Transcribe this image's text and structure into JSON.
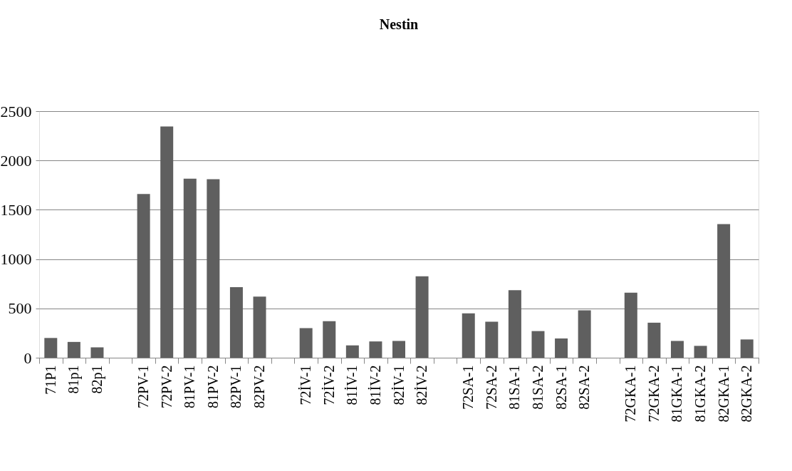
{
  "chart_data": {
    "type": "bar",
    "title": "Nestin",
    "categories": [
      "71P1",
      "81p1",
      "82p1",
      null,
      "72PV-1",
      "72PV-2",
      "81PV-1",
      "81PV-2",
      "82PV-1",
      "82PV-2",
      null,
      "72İV-1",
      "72İV-2",
      "81İV-1",
      "81İV-2",
      "82İV-1",
      "82İV-2",
      null,
      "72SA-1",
      "72SA-2",
      "81SA-1",
      "81SA-2",
      "82SA-1",
      "82SA-2",
      null,
      "72GKA-1",
      "72GKA-2",
      "81GKA-1",
      "81GKA-2",
      "82GKA-1",
      "82GKA-2"
    ],
    "values": [
      200,
      160,
      105,
      null,
      1660,
      2345,
      1815,
      1810,
      715,
      620,
      null,
      300,
      370,
      125,
      165,
      170,
      825,
      null,
      450,
      365,
      685,
      270,
      195,
      480,
      null,
      660,
      355,
      170,
      120,
      1355,
      185
    ],
    "color": "#5f5f5f",
    "ylim": [
      0,
      2500
    ],
    "yticks": [
      0,
      500,
      1000,
      1500,
      2000,
      2500
    ],
    "grid": "y"
  }
}
